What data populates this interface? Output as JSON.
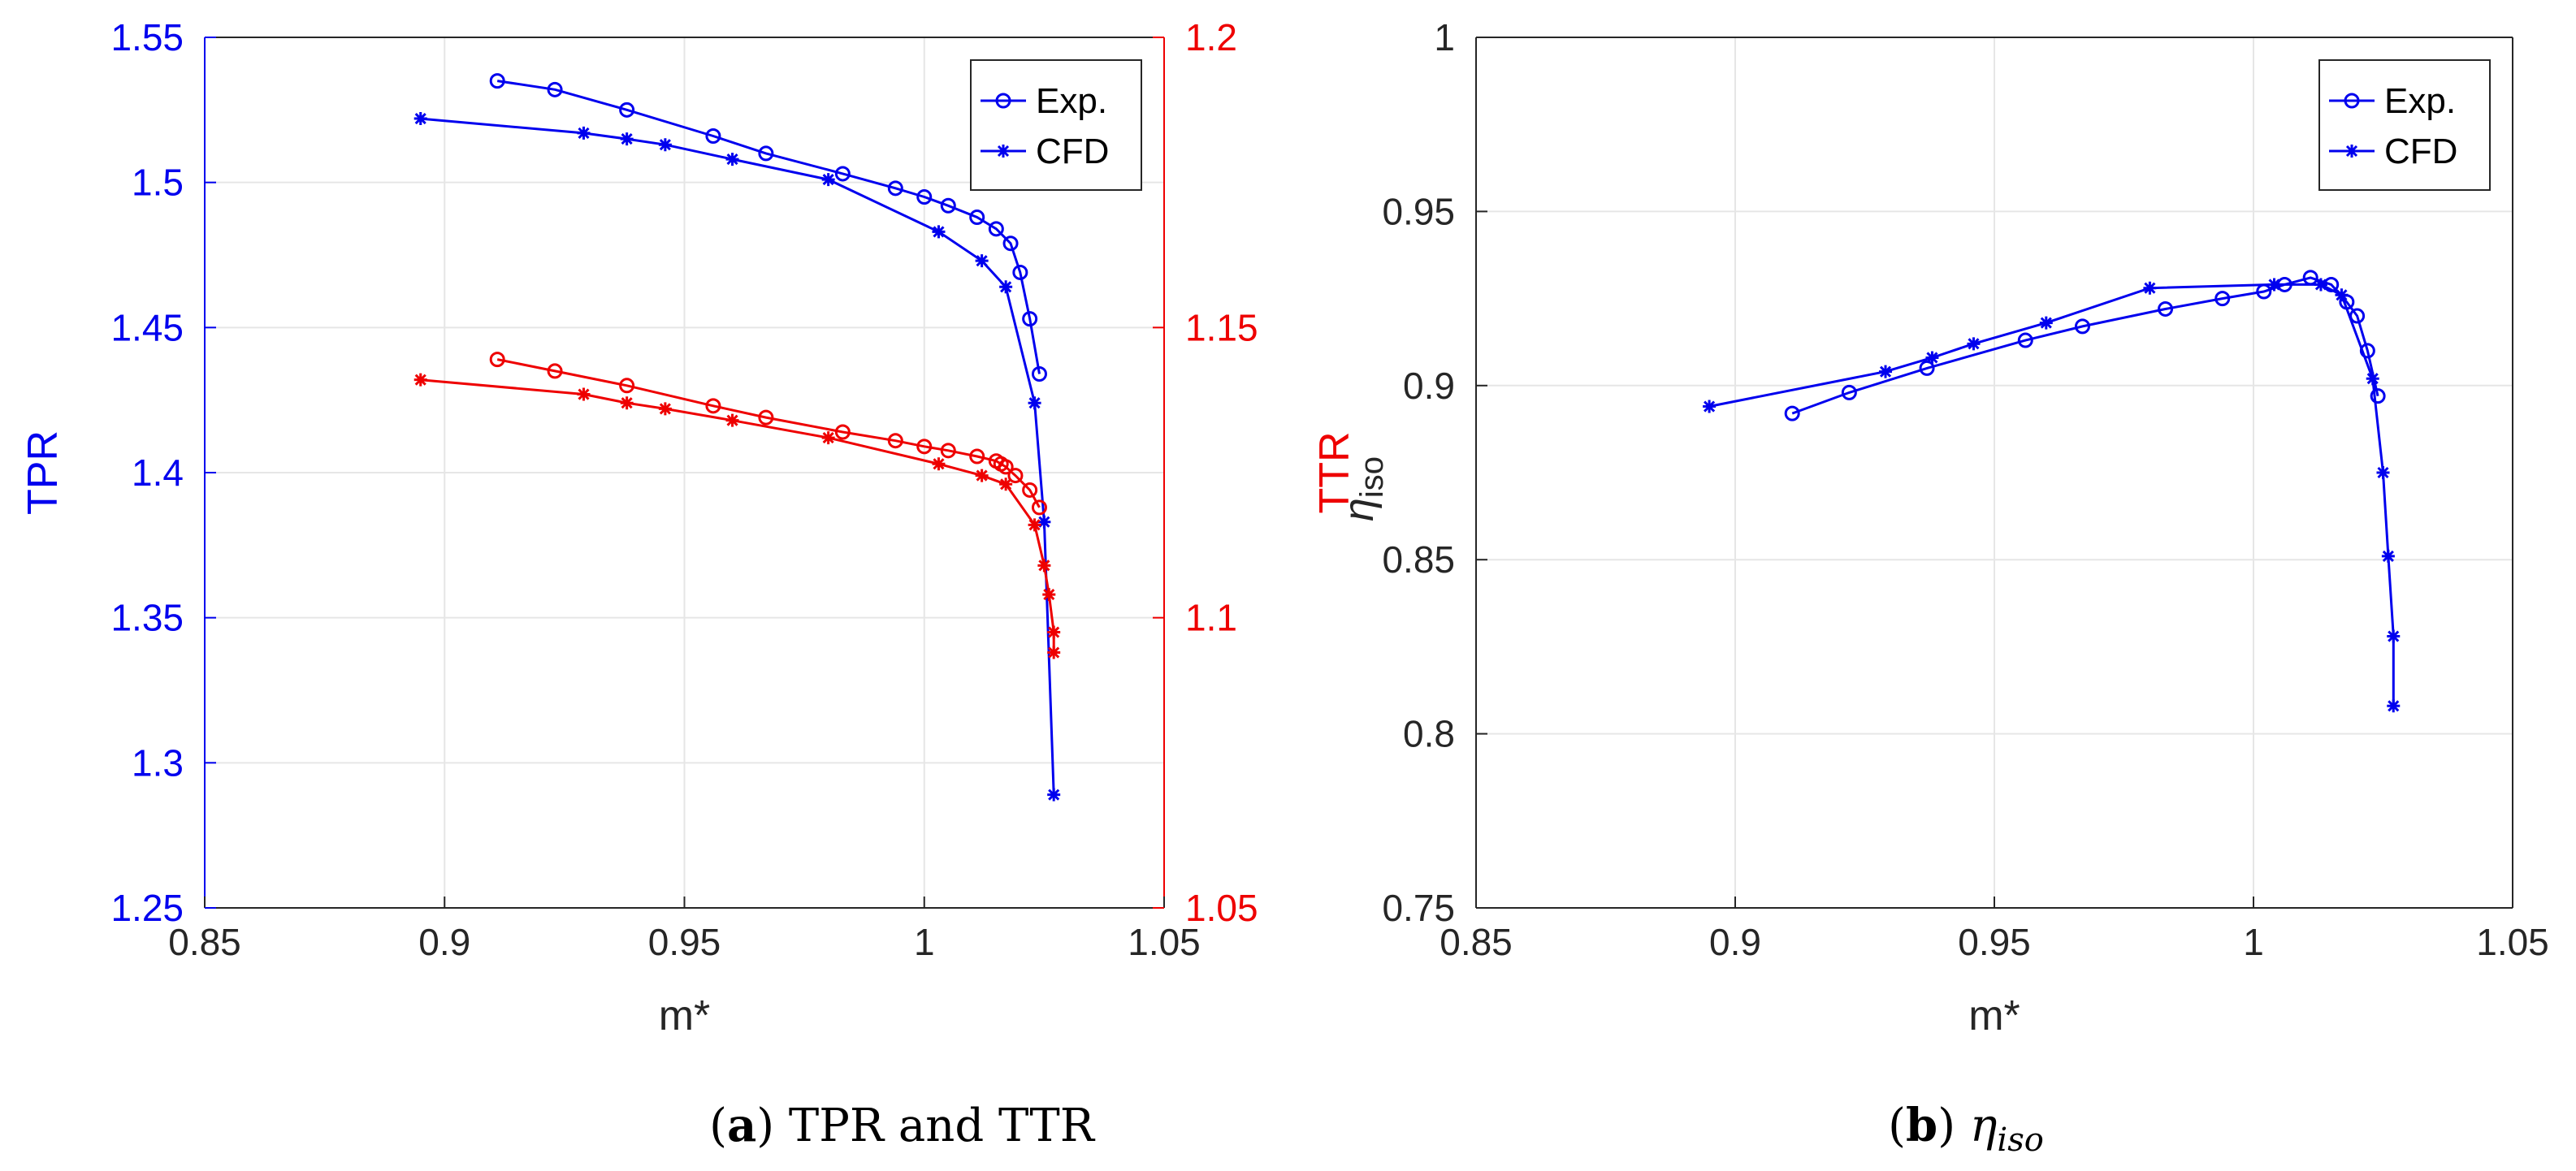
{
  "figures": {
    "a": {
      "caption_label": "a",
      "caption_text": "TPR and TTR"
    },
    "b": {
      "caption_label": "b",
      "caption_symbol": "η",
      "caption_sub": "iso"
    }
  },
  "legend": {
    "exp": "Exp.",
    "cfd": "CFD"
  },
  "colors": {
    "tpr": "#0000ee",
    "ttr": "#ee0000",
    "grid": "#e6e6e6",
    "axis": "#262626"
  },
  "chart_data": [
    {
      "type": "line",
      "title": "(a) TPR and TTR",
      "xlabel": "m*",
      "ylabel": "TPR",
      "ylabel_right": "TTR",
      "xlim": [
        0.85,
        1.05
      ],
      "ylim": [
        1.25,
        1.55
      ],
      "ylim_right": [
        1.05,
        1.2
      ],
      "xticks": [
        "0.85",
        "0.9",
        "0.95",
        "1",
        "1.05"
      ],
      "yticks": [
        "1.25",
        "1.3",
        "1.35",
        "1.4",
        "1.45",
        "1.5",
        "1.55"
      ],
      "yticks_right": [
        "1.05",
        "1.1",
        "1.15",
        "1.2"
      ],
      "grid": true,
      "legend_position": "top-right",
      "series": [
        {
          "name": "Exp.",
          "axis": "left",
          "marker": "circle",
          "x": [
            0.911,
            0.923,
            0.938,
            0.956,
            0.967,
            0.983,
            0.994,
            1.0,
            1.005,
            1.011,
            1.015,
            1.018,
            1.02,
            1.022,
            1.024
          ],
          "y": [
            1.535,
            1.532,
            1.525,
            1.516,
            1.51,
            1.503,
            1.498,
            1.495,
            1.492,
            1.488,
            1.484,
            1.479,
            1.469,
            1.453,
            1.434
          ]
        },
        {
          "name": "CFD",
          "axis": "left",
          "marker": "star",
          "x": [
            0.895,
            0.929,
            0.938,
            0.946,
            0.96,
            0.98,
            1.003,
            1.012,
            1.017,
            1.023,
            1.025,
            1.027
          ],
          "y": [
            1.522,
            1.517,
            1.515,
            1.513,
            1.508,
            1.501,
            1.483,
            1.473,
            1.464,
            1.424,
            1.383,
            1.289
          ]
        },
        {
          "name": "Exp.",
          "axis": "right",
          "marker": "circle",
          "x": [
            0.911,
            0.923,
            0.938,
            0.956,
            0.967,
            0.983,
            0.994,
            1.0,
            1.005,
            1.011,
            1.015,
            1.016,
            1.017,
            1.019,
            1.022,
            1.024
          ],
          "y": [
            1.1445,
            1.1425,
            1.14,
            1.1365,
            1.1345,
            1.132,
            1.1305,
            1.1295,
            1.1288,
            1.1278,
            1.127,
            1.1265,
            1.126,
            1.1245,
            1.122,
            1.119
          ]
        },
        {
          "name": "CFD",
          "axis": "right",
          "marker": "star",
          "x": [
            0.895,
            0.929,
            0.938,
            0.946,
            0.96,
            0.98,
            1.003,
            1.012,
            1.017,
            1.023,
            1.025,
            1.026,
            1.027,
            1.027
          ],
          "y": [
            1.141,
            1.1385,
            1.137,
            1.136,
            1.134,
            1.131,
            1.1265,
            1.1245,
            1.123,
            1.116,
            1.109,
            1.104,
            1.0975,
            1.094
          ]
        }
      ]
    },
    {
      "type": "line",
      "title": "(b) η_iso",
      "xlabel": "m*",
      "ylabel": "η",
      "ylabel_sub": "iso",
      "xlim": [
        0.85,
        1.05
      ],
      "ylim": [
        0.75,
        1.0
      ],
      "xticks": [
        "0.85",
        "0.9",
        "0.95",
        "1",
        "1.05"
      ],
      "yticks": [
        "0.75",
        "0.8",
        "0.85",
        "0.9",
        "0.95",
        "1"
      ],
      "grid": true,
      "legend_position": "top-right",
      "series": [
        {
          "name": "Exp.",
          "marker": "circle",
          "x": [
            0.911,
            0.922,
            0.937,
            0.956,
            0.967,
            0.983,
            0.994,
            1.002,
            1.006,
            1.011,
            1.015,
            1.018,
            1.02,
            1.022,
            1.024
          ],
          "y": [
            0.892,
            0.898,
            0.905,
            0.913,
            0.917,
            0.922,
            0.925,
            0.927,
            0.929,
            0.931,
            0.929,
            0.924,
            0.92,
            0.91,
            0.897
          ]
        },
        {
          "name": "CFD",
          "marker": "star",
          "x": [
            0.895,
            0.929,
            0.938,
            0.946,
            0.96,
            0.98,
            1.004,
            1.013,
            1.017,
            1.023,
            1.025,
            1.026,
            1.027,
            1.027
          ],
          "y": [
            0.894,
            0.904,
            0.908,
            0.912,
            0.918,
            0.928,
            0.929,
            0.929,
            0.926,
            0.902,
            0.875,
            0.851,
            0.828,
            0.808
          ]
        }
      ]
    }
  ]
}
